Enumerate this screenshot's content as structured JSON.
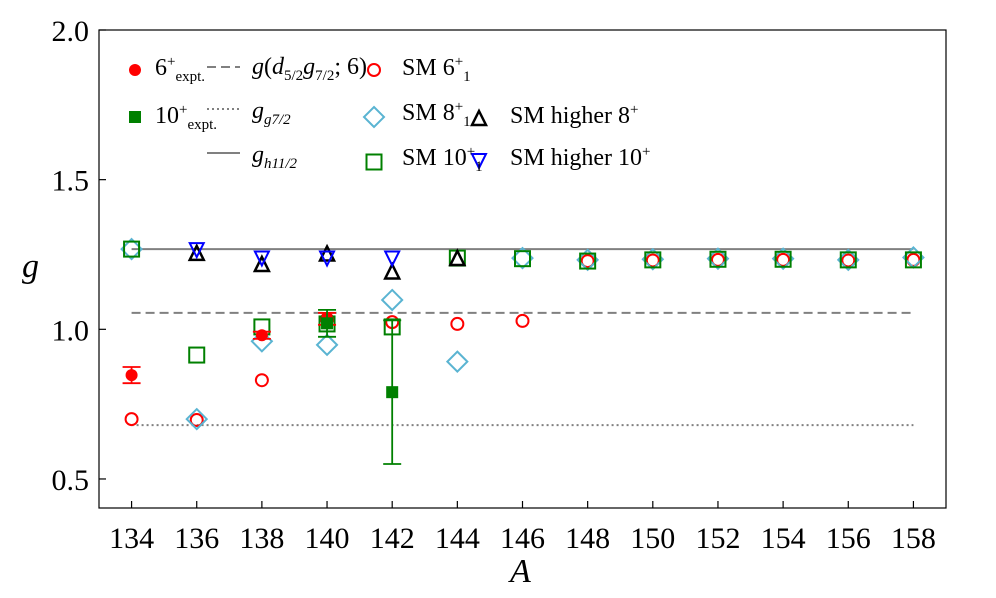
{
  "chart_data": {
    "type": "scatter",
    "xlabel": "A",
    "ylabel": "g",
    "xlim": [
      133,
      159
    ],
    "ylim": [
      0.403,
      2.0
    ],
    "xticks": [
      "134",
      "136",
      "138",
      "140",
      "142",
      "144",
      "146",
      "148",
      "150",
      "152",
      "154",
      "156",
      "158"
    ],
    "yticks": [
      "0.5",
      "1.0",
      "1.5",
      "2.0"
    ],
    "legend_position": "top",
    "reference_lines": [
      {
        "name": "g(d5/2 g7/2; 6)",
        "style": "dashed",
        "y": 1.055,
        "x": [
          134,
          158
        ],
        "color": "#808080"
      },
      {
        "name": "g_g7/2",
        "style": "dotted",
        "y": 0.68,
        "x": [
          134,
          158
        ],
        "color": "#808080"
      },
      {
        "name": "g_h11/2",
        "style": "solid",
        "y": 1.268,
        "x": [
          134,
          158
        ],
        "color": "#808080"
      }
    ],
    "series": [
      {
        "name": "6+ expt.",
        "marker": "filled-circle",
        "color": "#ff0000",
        "x": [
          134,
          138,
          140
        ],
        "y": [
          0.847,
          0.98,
          1.035
        ],
        "err": [
          0.027,
          0.012,
          0.02
        ]
      },
      {
        "name": "10+ expt.",
        "marker": "filled-square",
        "color": "#008000",
        "x": [
          140,
          142
        ],
        "y": [
          1.02,
          0.79
        ],
        "err": [
          0.045,
          0.24
        ]
      },
      {
        "name": "SM 6_1+",
        "marker": "open-circle",
        "color": "#ff0000",
        "x": [
          134,
          136,
          138,
          140,
          142,
          144,
          146,
          148,
          150,
          152,
          154,
          156,
          158
        ],
        "y": [
          0.7,
          0.697,
          0.83,
          1.034,
          1.024,
          1.018,
          1.028,
          1.228,
          1.23,
          1.232,
          1.232,
          1.23,
          1.232
        ]
      },
      {
        "name": "SM 8_1+",
        "marker": "open-diamond",
        "color": "#5ab4d2",
        "x": [
          134,
          136,
          138,
          140,
          142,
          144,
          146,
          148,
          150,
          152,
          154,
          156,
          158
        ],
        "y": [
          1.268,
          0.7,
          0.96,
          0.948,
          1.098,
          0.892,
          1.238,
          1.232,
          1.234,
          1.236,
          1.236,
          1.232,
          1.24
        ]
      },
      {
        "name": "SM 10_1+",
        "marker": "open-square",
        "color": "#008000",
        "x": [
          134,
          136,
          138,
          140,
          142,
          144,
          146,
          148,
          150,
          152,
          154,
          156,
          158
        ],
        "y": [
          1.268,
          0.914,
          1.008,
          1.018,
          1.008,
          1.238,
          1.236,
          1.228,
          1.232,
          1.234,
          1.234,
          1.232,
          1.232
        ]
      },
      {
        "name": "SM higher 8+",
        "marker": "open-triangle-up",
        "color": "#000000",
        "x": [
          136,
          138,
          140,
          142,
          144
        ],
        "y": [
          1.252,
          1.215,
          1.25,
          1.19,
          1.235
        ]
      },
      {
        "name": "SM higher 10+",
        "marker": "open-triangle-down",
        "color": "#0000ff",
        "x": [
          136,
          138,
          140,
          142
        ],
        "y": [
          1.268,
          1.24,
          1.24,
          1.24
        ]
      }
    ],
    "legend": [
      {
        "id": "e6",
        "parts": [
          {
            "t": "6"
          },
          {
            "sup": "+"
          },
          {
            "sub": "expt."
          }
        ]
      },
      {
        "id": "e10",
        "parts": [
          {
            "t": "10"
          },
          {
            "sup": "+"
          },
          {
            "sub": "expt."
          }
        ]
      },
      {
        "id": "ld",
        "parts": [
          {
            "i": "g"
          },
          {
            "t": "("
          },
          {
            "i": "d"
          },
          {
            "sub": "5/2"
          },
          {
            "i": "g"
          },
          {
            "sub": "7/2"
          },
          {
            "t": "; 6)"
          }
        ]
      },
      {
        "id": "lg",
        "parts": [
          {
            "i": "g"
          },
          {
            "sub": "g7/2"
          }
        ]
      },
      {
        "id": "lh",
        "parts": [
          {
            "i": "g"
          },
          {
            "sub": "h11/2"
          }
        ]
      },
      {
        "id": "s6",
        "parts": [
          {
            "t": "SM 6"
          },
          {
            "sup": "+"
          },
          {
            "sub": "1"
          }
        ]
      },
      {
        "id": "s8",
        "parts": [
          {
            "t": "SM 8"
          },
          {
            "sup": "+"
          },
          {
            "sub": "1"
          }
        ]
      },
      {
        "id": "s10",
        "parts": [
          {
            "t": "SM 10"
          },
          {
            "sup": "+"
          },
          {
            "sub": "1"
          }
        ]
      },
      {
        "id": "h8",
        "parts": [
          {
            "t": "SM higher 8"
          },
          {
            "sup": "+"
          }
        ]
      },
      {
        "id": "h10",
        "parts": [
          {
            "t": "SM higher 10"
          },
          {
            "sup": "+"
          }
        ]
      }
    ]
  }
}
